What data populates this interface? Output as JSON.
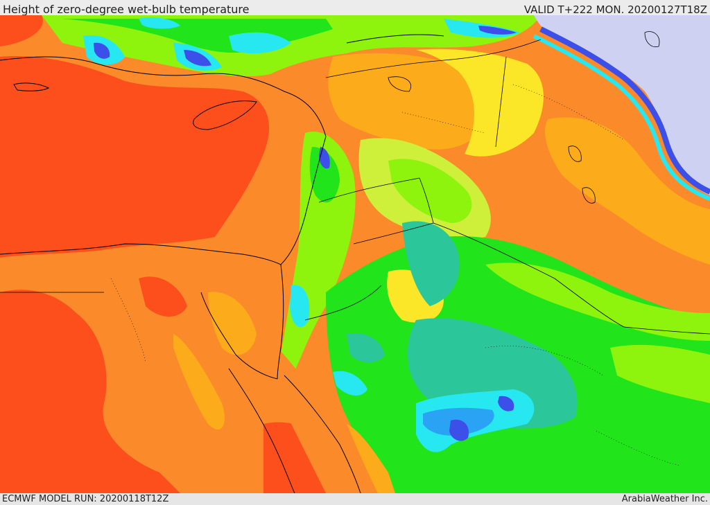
{
  "header": {
    "title": "Height of zero-degree wet-bulb temperature",
    "valid_time": "VALID T+222 MON. 20200127T18Z"
  },
  "footer": {
    "model_run": "ECMWF MODEL RUN: 20200118T12Z",
    "credit": "ArabiaWeather Inc."
  },
  "palette": {
    "red": "#fc4f1c",
    "dark_orange": "#fb8a2a",
    "orange": "#fcab1a",
    "yellow": "#fbe728",
    "yellow_green": "#cff03a",
    "lime": "#8ef40e",
    "green": "#21e41a",
    "teal": "#2bc79a",
    "cyan": "#27e8f0",
    "sky_blue": "#2aa3f5",
    "blue": "#3c4fe9",
    "violet": "#8a7ae7",
    "lavender": "#cfd1f2",
    "coastline": "#000000"
  }
}
